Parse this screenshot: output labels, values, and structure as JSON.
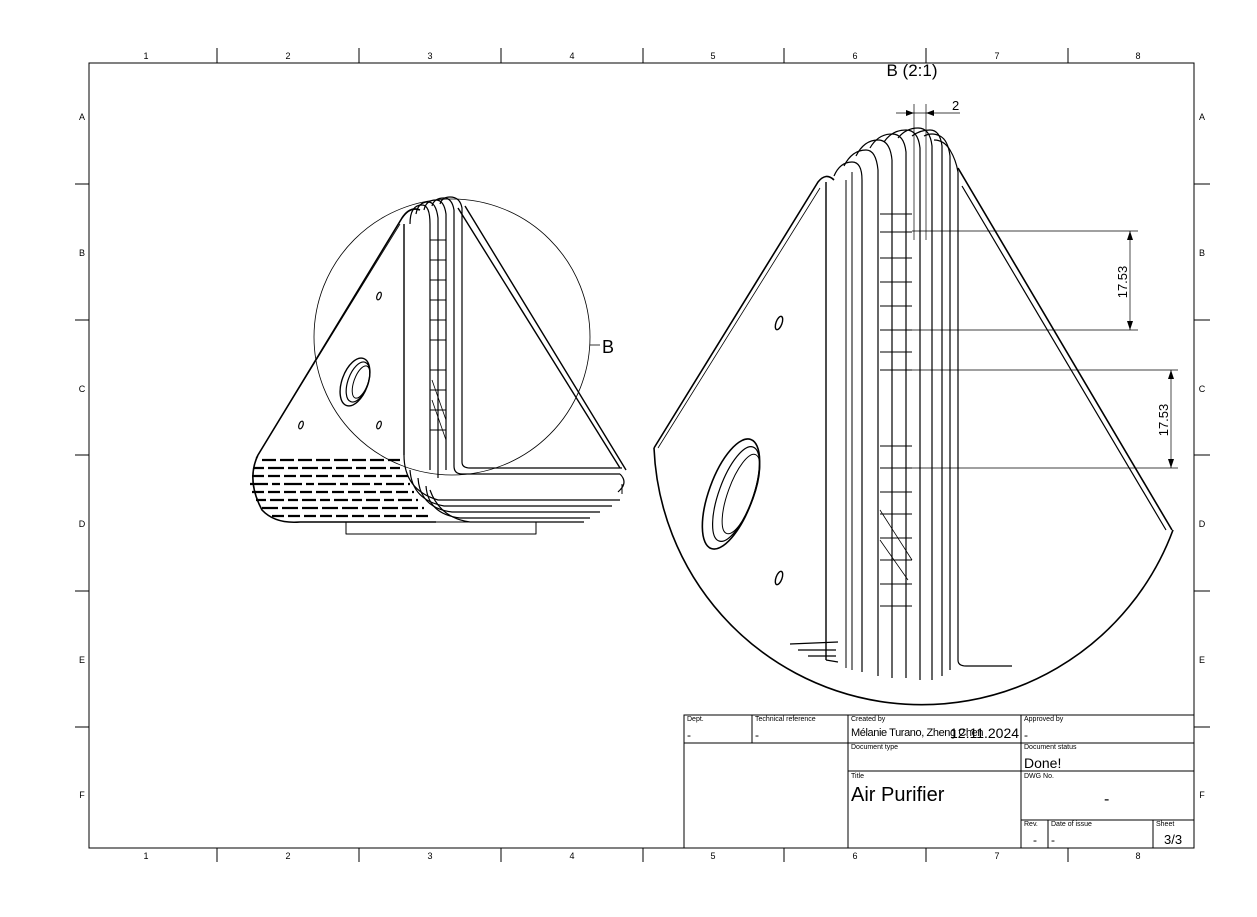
{
  "zones": {
    "columns": [
      "1",
      "2",
      "3",
      "4",
      "5",
      "6",
      "7",
      "8"
    ],
    "rows": [
      "A",
      "B",
      "C",
      "D",
      "E",
      "F"
    ]
  },
  "drawing": {
    "detail_callout": "B",
    "detail_view_title": "B (2:1)",
    "dimensions": {
      "thickness": "2",
      "pitch_1": "17.53",
      "pitch_2": "17.53"
    }
  },
  "title_block": {
    "dept_label": "Dept.",
    "dept_value": "-",
    "techref_label": "Technical reference",
    "techref_value": "-",
    "created_label": "Created by",
    "created_value": "Mélanie Turano, Zheng Chen",
    "created_date": "12.11.2024",
    "approved_label": "Approved by",
    "approved_value": "-",
    "doctype_label": "Document type",
    "doctype_value": "",
    "docstatus_label": "Document status",
    "docstatus_value": "Done!",
    "title_label": "Title",
    "title_value": "Air Purifier",
    "dwg_label": "DWG No.",
    "dwg_value": "-",
    "rev_label": "Rev.",
    "rev_value": "-",
    "issue_label": "Date of issue",
    "issue_value": "-",
    "sheet_label": "Sheet",
    "sheet_value": "3/3"
  }
}
